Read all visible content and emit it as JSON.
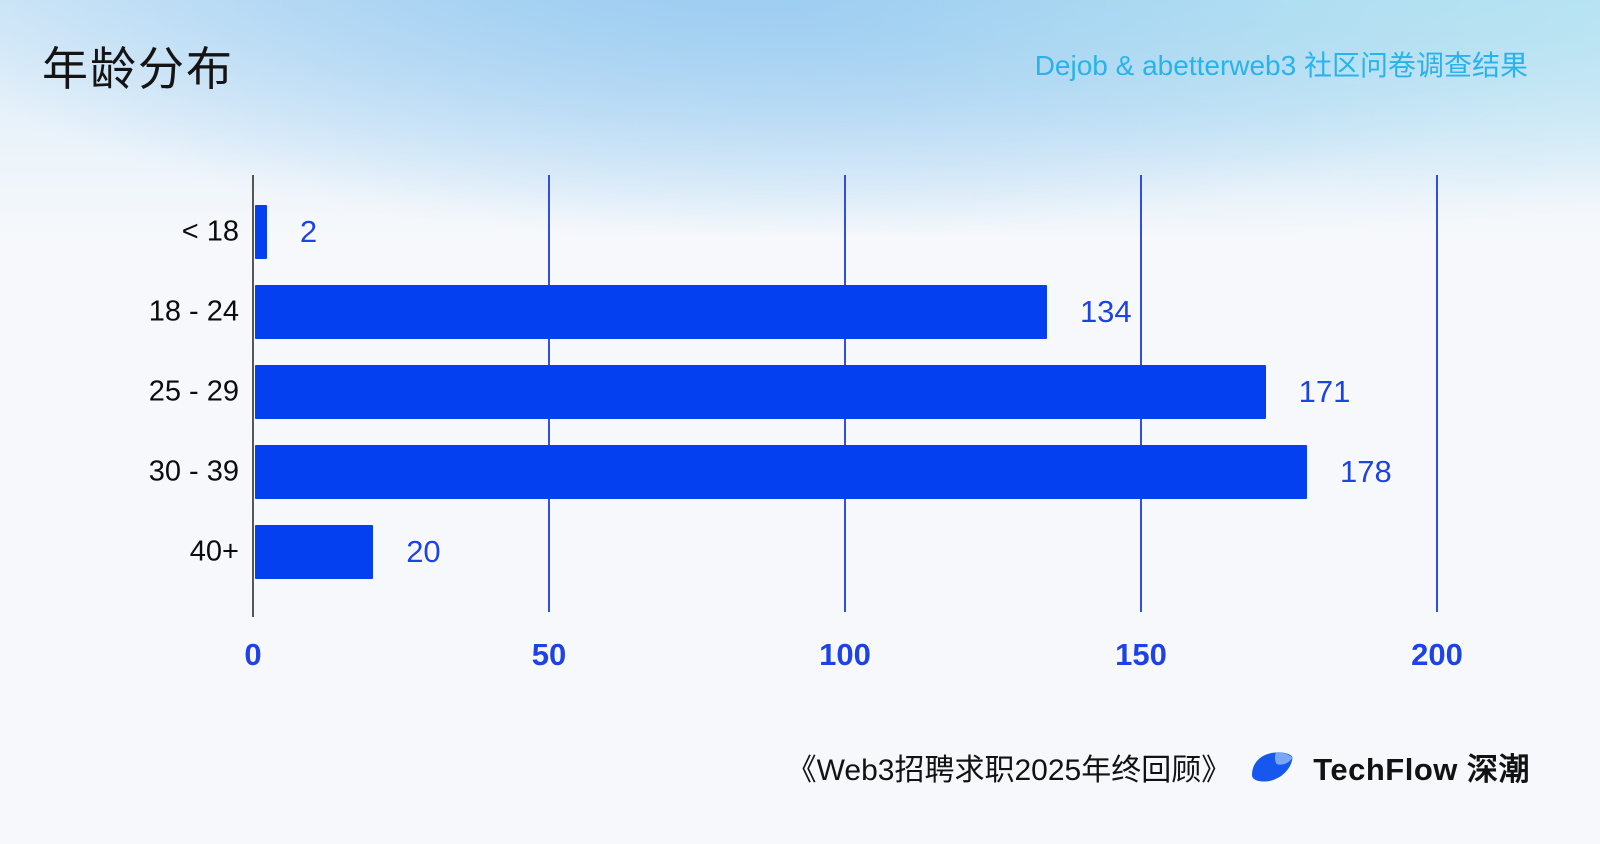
{
  "header": {
    "subtitle": "Dejob & abetterweb3 社区问卷调查结果"
  },
  "chart_data": {
    "type": "bar",
    "orientation": "horizontal",
    "title": "年龄分布",
    "categories": [
      "< 18",
      "18 - 24",
      "25 - 29",
      "30 - 39",
      "40+"
    ],
    "values": [
      2,
      134,
      171,
      178,
      20
    ],
    "xlabel": "",
    "ylabel": "",
    "xlim": [
      0,
      200
    ],
    "xticks": [
      0,
      50,
      100,
      150,
      200
    ],
    "grid": "vertical-on",
    "legend": "none",
    "bar_color": "#0540f0",
    "grid_color": "#3050d8",
    "value_label_color": "#1d43e8",
    "subtitle_color": "#29b3eb"
  },
  "footer": {
    "source_title": "《Web3招聘求职2025年终回顾》",
    "brand": "TechFlow 深潮"
  }
}
